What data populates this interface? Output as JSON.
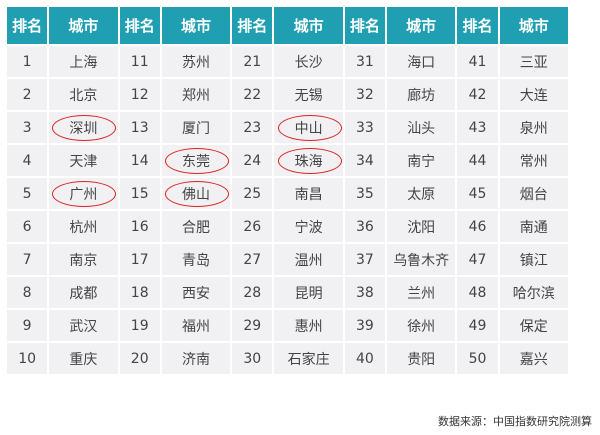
{
  "header": {
    "rank": "排名",
    "city": "城市"
  },
  "groups": [
    {
      "ranks": [
        "1",
        "2",
        "3",
        "4",
        "5",
        "6",
        "7",
        "8",
        "9",
        "10"
      ],
      "cities": [
        "上海",
        "北京",
        "深圳",
        "天津",
        "广州",
        "杭州",
        "南京",
        "成都",
        "武汉",
        "重庆"
      ],
      "circled": [
        2,
        4
      ]
    },
    {
      "ranks": [
        "11",
        "12",
        "13",
        "14",
        "15",
        "16",
        "17",
        "18",
        "19",
        "20"
      ],
      "cities": [
        "苏州",
        "郑州",
        "厦门",
        "东莞",
        "佛山",
        "合肥",
        "青岛",
        "西安",
        "福州",
        "济南"
      ],
      "circled": [
        3,
        4
      ]
    },
    {
      "ranks": [
        "21",
        "22",
        "23",
        "24",
        "25",
        "26",
        "27",
        "28",
        "29",
        "30"
      ],
      "cities": [
        "长沙",
        "无锡",
        "中山",
        "珠海",
        "南昌",
        "宁波",
        "温州",
        "昆明",
        "惠州",
        "石家庄"
      ],
      "circled": [
        2,
        3
      ]
    },
    {
      "ranks": [
        "31",
        "32",
        "33",
        "34",
        "35",
        "36",
        "37",
        "38",
        "39",
        "40"
      ],
      "cities": [
        "海口",
        "廊坊",
        "汕头",
        "南宁",
        "太原",
        "沈阳",
        "乌鲁木齐",
        "兰州",
        "徐州",
        "贵阳"
      ],
      "circled": []
    },
    {
      "ranks": [
        "41",
        "42",
        "43",
        "44",
        "45",
        "46",
        "47",
        "48",
        "49",
        "50"
      ],
      "cities": [
        "三亚",
        "大连",
        "泉州",
        "常州",
        "烟台",
        "南通",
        "镇江",
        "哈尔滨",
        "保定",
        "嘉兴"
      ],
      "circled": []
    }
  ],
  "colors": {
    "header": "#1f9fb1",
    "cell": "#f1f0f3",
    "circle": "#dd2222"
  },
  "source": "数据来源：中国指数研究院测算"
}
